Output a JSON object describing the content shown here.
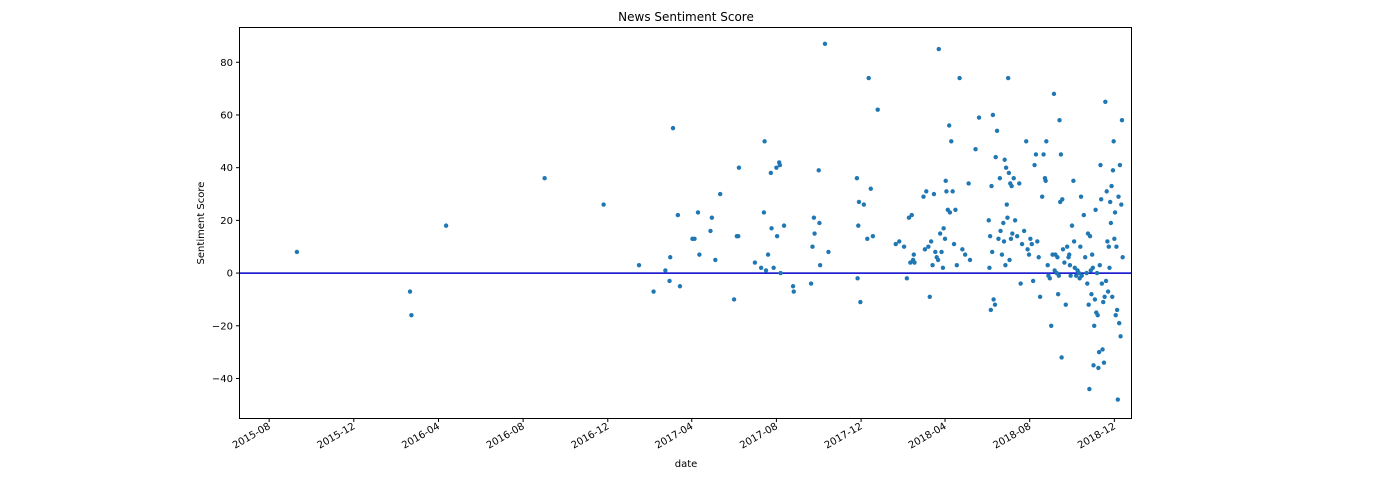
{
  "chart_data": {
    "type": "scatter",
    "title": "News Sentiment Score",
    "xlabel": "date",
    "ylabel": "Sentiment Score",
    "x_ticks": [
      "2015-08",
      "2015-12",
      "2016-04",
      "2016-08",
      "2016-12",
      "2017-04",
      "2017-08",
      "2017-12",
      "2018-04",
      "2018-08",
      "2018-12"
    ],
    "y_ticks": [
      -40,
      -20,
      0,
      20,
      40,
      60,
      80
    ],
    "xlim": [
      "2015-06-20",
      "2018-12-25"
    ],
    "ylim": [
      -55,
      93
    ],
    "grid": false,
    "reference_line": {
      "y": 0,
      "color": "#0000cc"
    },
    "point_color": "#1f77b4",
    "points": [
      [
        "2015-09-10",
        8
      ],
      [
        "2016-02-20",
        -7
      ],
      [
        "2016-02-22",
        -16
      ],
      [
        "2016-04-12",
        18
      ],
      [
        "2016-09-01",
        36
      ],
      [
        "2016-11-25",
        26
      ],
      [
        "2017-01-15",
        3
      ],
      [
        "2017-02-05",
        -7
      ],
      [
        "2017-02-22",
        1
      ],
      [
        "2017-02-28",
        -3
      ],
      [
        "2017-03-01",
        6
      ],
      [
        "2017-03-05",
        55
      ],
      [
        "2017-03-12",
        22
      ],
      [
        "2017-03-15",
        -5
      ],
      [
        "2017-04-02",
        13
      ],
      [
        "2017-04-05",
        13
      ],
      [
        "2017-04-10",
        23
      ],
      [
        "2017-04-12",
        7
      ],
      [
        "2017-04-28",
        16
      ],
      [
        "2017-04-30",
        21
      ],
      [
        "2017-05-05",
        5
      ],
      [
        "2017-05-12",
        30
      ],
      [
        "2017-06-01",
        -10
      ],
      [
        "2017-06-05",
        14
      ],
      [
        "2017-06-07",
        14
      ],
      [
        "2017-06-08",
        40
      ],
      [
        "2017-07-01",
        4
      ],
      [
        "2017-07-10",
        2
      ],
      [
        "2017-07-14",
        23
      ],
      [
        "2017-07-15",
        50
      ],
      [
        "2017-07-17",
        1
      ],
      [
        "2017-07-20",
        7
      ],
      [
        "2017-07-24",
        38
      ],
      [
        "2017-07-25",
        17
      ],
      [
        "2017-07-28",
        2
      ],
      [
        "2017-08-01",
        40
      ],
      [
        "2017-08-02",
        14
      ],
      [
        "2017-08-05",
        42
      ],
      [
        "2017-08-06",
        41
      ],
      [
        "2017-08-07",
        0
      ],
      [
        "2017-08-12",
        18
      ],
      [
        "2017-08-25",
        -5
      ],
      [
        "2017-08-26",
        -7
      ],
      [
        "2017-09-20",
        -4
      ],
      [
        "2017-09-22",
        10
      ],
      [
        "2017-09-24",
        21
      ],
      [
        "2017-09-25",
        15
      ],
      [
        "2017-10-01",
        39
      ],
      [
        "2017-10-02",
        19
      ],
      [
        "2017-10-03",
        3
      ],
      [
        "2017-10-10",
        87
      ],
      [
        "2017-10-15",
        8
      ],
      [
        "2017-11-25",
        36
      ],
      [
        "2017-11-26",
        -2
      ],
      [
        "2017-11-27",
        18
      ],
      [
        "2017-11-28",
        27
      ],
      [
        "2017-11-30",
        -11
      ],
      [
        "2017-12-05",
        26
      ],
      [
        "2017-12-10",
        13
      ],
      [
        "2017-12-12",
        74
      ],
      [
        "2017-12-15",
        32
      ],
      [
        "2017-12-18",
        14
      ],
      [
        "2017-12-25",
        62
      ],
      [
        "2018-01-20",
        11
      ],
      [
        "2018-01-25",
        12
      ],
      [
        "2018-02-01",
        10
      ],
      [
        "2018-02-05",
        -2
      ],
      [
        "2018-02-08",
        21
      ],
      [
        "2018-02-10",
        4
      ],
      [
        "2018-02-12",
        22
      ],
      [
        "2018-02-14",
        5
      ],
      [
        "2018-02-15",
        7
      ],
      [
        "2018-02-16",
        4
      ],
      [
        "2018-03-01",
        29
      ],
      [
        "2018-03-03",
        9
      ],
      [
        "2018-03-05",
        31
      ],
      [
        "2018-03-08",
        10
      ],
      [
        "2018-03-10",
        -9
      ],
      [
        "2018-03-12",
        12
      ],
      [
        "2018-03-14",
        3
      ],
      [
        "2018-03-16",
        30
      ],
      [
        "2018-03-18",
        8
      ],
      [
        "2018-03-20",
        6
      ],
      [
        "2018-03-22",
        5
      ],
      [
        "2018-03-23",
        85
      ],
      [
        "2018-03-25",
        15
      ],
      [
        "2018-03-27",
        8
      ],
      [
        "2018-03-29",
        2
      ],
      [
        "2018-03-30",
        17
      ],
      [
        "2018-04-01",
        13
      ],
      [
        "2018-04-02",
        35
      ],
      [
        "2018-04-03",
        31
      ],
      [
        "2018-04-05",
        24
      ],
      [
        "2018-04-07",
        56
      ],
      [
        "2018-04-08",
        23
      ],
      [
        "2018-04-10",
        50
      ],
      [
        "2018-04-12",
        31
      ],
      [
        "2018-04-14",
        11
      ],
      [
        "2018-04-16",
        24
      ],
      [
        "2018-04-18",
        3
      ],
      [
        "2018-04-22",
        74
      ],
      [
        "2018-04-26",
        9
      ],
      [
        "2018-04-30",
        7
      ],
      [
        "2018-05-05",
        34
      ],
      [
        "2018-05-07",
        5
      ],
      [
        "2018-05-15",
        47
      ],
      [
        "2018-05-20",
        59
      ],
      [
        "2018-06-03",
        20
      ],
      [
        "2018-06-04",
        2
      ],
      [
        "2018-06-05",
        14
      ],
      [
        "2018-06-06",
        -14
      ],
      [
        "2018-06-07",
        33
      ],
      [
        "2018-06-08",
        8
      ],
      [
        "2018-06-09",
        60
      ],
      [
        "2018-06-10",
        -10
      ],
      [
        "2018-06-12",
        -12
      ],
      [
        "2018-06-13",
        44
      ],
      [
        "2018-06-15",
        54
      ],
      [
        "2018-06-17",
        13
      ],
      [
        "2018-06-19",
        36
      ],
      [
        "2018-06-20",
        16
      ],
      [
        "2018-06-22",
        7
      ],
      [
        "2018-06-24",
        19
      ],
      [
        "2018-06-25",
        12
      ],
      [
        "2018-06-26",
        43
      ],
      [
        "2018-06-27",
        3
      ],
      [
        "2018-06-28",
        40
      ],
      [
        "2018-06-29",
        26
      ],
      [
        "2018-06-30",
        21
      ],
      [
        "2018-07-01",
        74
      ],
      [
        "2018-07-02",
        38
      ],
      [
        "2018-07-03",
        5
      ],
      [
        "2018-07-04",
        34
      ],
      [
        "2018-07-05",
        13
      ],
      [
        "2018-07-06",
        33
      ],
      [
        "2018-07-07",
        15
      ],
      [
        "2018-07-09",
        36
      ],
      [
        "2018-07-11",
        20
      ],
      [
        "2018-07-14",
        14
      ],
      [
        "2018-07-17",
        34
      ],
      [
        "2018-07-19",
        -4
      ],
      [
        "2018-07-21",
        11
      ],
      [
        "2018-07-24",
        16
      ],
      [
        "2018-07-27",
        50
      ],
      [
        "2018-07-29",
        9
      ],
      [
        "2018-07-31",
        7
      ],
      [
        "2018-08-02",
        13
      ],
      [
        "2018-08-04",
        11
      ],
      [
        "2018-08-06",
        -3
      ],
      [
        "2018-08-08",
        41
      ],
      [
        "2018-08-10",
        45
      ],
      [
        "2018-08-12",
        12
      ],
      [
        "2018-08-14",
        6
      ],
      [
        "2018-08-16",
        -9
      ],
      [
        "2018-08-19",
        29
      ],
      [
        "2018-08-21",
        45
      ],
      [
        "2018-08-23",
        36
      ],
      [
        "2018-08-24",
        35
      ],
      [
        "2018-08-25",
        50
      ],
      [
        "2018-08-27",
        3
      ],
      [
        "2018-08-28",
        -1
      ],
      [
        "2018-08-30",
        -2
      ],
      [
        "2018-09-01",
        -20
      ],
      [
        "2018-09-03",
        7
      ],
      [
        "2018-09-05",
        68
      ],
      [
        "2018-09-06",
        1
      ],
      [
        "2018-09-07",
        7
      ],
      [
        "2018-09-09",
        0
      ],
      [
        "2018-09-10",
        6
      ],
      [
        "2018-09-11",
        -8
      ],
      [
        "2018-09-12",
        -1
      ],
      [
        "2018-09-13",
        58
      ],
      [
        "2018-09-14",
        27
      ],
      [
        "2018-09-15",
        45
      ],
      [
        "2018-09-16",
        -32
      ],
      [
        "2018-09-17",
        28
      ],
      [
        "2018-09-18",
        9
      ],
      [
        "2018-09-20",
        4
      ],
      [
        "2018-09-22",
        -12
      ],
      [
        "2018-09-24",
        10
      ],
      [
        "2018-09-26",
        6
      ],
      [
        "2018-09-27",
        7
      ],
      [
        "2018-09-28",
        3
      ],
      [
        "2018-09-29",
        -1
      ],
      [
        "2018-10-01",
        18
      ],
      [
        "2018-10-03",
        35
      ],
      [
        "2018-10-04",
        12
      ],
      [
        "2018-10-05",
        2
      ],
      [
        "2018-10-07",
        -1
      ],
      [
        "2018-10-09",
        1
      ],
      [
        "2018-10-11",
        0
      ],
      [
        "2018-10-12",
        -2
      ],
      [
        "2018-10-13",
        10
      ],
      [
        "2018-10-14",
        29
      ],
      [
        "2018-10-15",
        -1
      ],
      [
        "2018-10-18",
        22
      ],
      [
        "2018-10-20",
        6
      ],
      [
        "2018-10-22",
        0
      ],
      [
        "2018-10-23",
        -4
      ],
      [
        "2018-10-24",
        15
      ],
      [
        "2018-10-25",
        -12
      ],
      [
        "2018-10-26",
        -44
      ],
      [
        "2018-10-27",
        14
      ],
      [
        "2018-10-28",
        1
      ],
      [
        "2018-10-29",
        -8
      ],
      [
        "2018-10-30",
        7
      ],
      [
        "2018-10-31",
        2
      ],
      [
        "2018-11-01",
        -35
      ],
      [
        "2018-11-02",
        -20
      ],
      [
        "2018-11-03",
        -10
      ],
      [
        "2018-11-04",
        24
      ],
      [
        "2018-11-05",
        -15
      ],
      [
        "2018-11-06",
        0
      ],
      [
        "2018-11-07",
        -16
      ],
      [
        "2018-11-08",
        -36
      ],
      [
        "2018-11-09",
        -30
      ],
      [
        "2018-11-10",
        3
      ],
      [
        "2018-11-11",
        41
      ],
      [
        "2018-11-12",
        28
      ],
      [
        "2018-11-13",
        -4
      ],
      [
        "2018-11-14",
        -29
      ],
      [
        "2018-11-15",
        -11
      ],
      [
        "2018-11-16",
        -34
      ],
      [
        "2018-11-17",
        -9
      ],
      [
        "2018-11-18",
        65
      ],
      [
        "2018-11-19",
        -3
      ],
      [
        "2018-11-20",
        31
      ],
      [
        "2018-11-21",
        12
      ],
      [
        "2018-11-22",
        -7
      ],
      [
        "2018-11-23",
        10
      ],
      [
        "2018-11-24",
        2
      ],
      [
        "2018-11-25",
        27
      ],
      [
        "2018-11-26",
        19
      ],
      [
        "2018-11-27",
        33
      ],
      [
        "2018-11-28",
        -9
      ],
      [
        "2018-11-29",
        39
      ],
      [
        "2018-11-30",
        50
      ],
      [
        "2018-12-01",
        13
      ],
      [
        "2018-12-02",
        23
      ],
      [
        "2018-12-03",
        -16
      ],
      [
        "2018-12-04",
        10
      ],
      [
        "2018-12-05",
        -14
      ],
      [
        "2018-12-06",
        -48
      ],
      [
        "2018-12-07",
        29
      ],
      [
        "2018-12-08",
        -19
      ],
      [
        "2018-12-09",
        41
      ],
      [
        "2018-12-10",
        -24
      ],
      [
        "2018-12-11",
        26
      ],
      [
        "2018-12-12",
        58
      ],
      [
        "2018-12-13",
        6
      ]
    ]
  }
}
